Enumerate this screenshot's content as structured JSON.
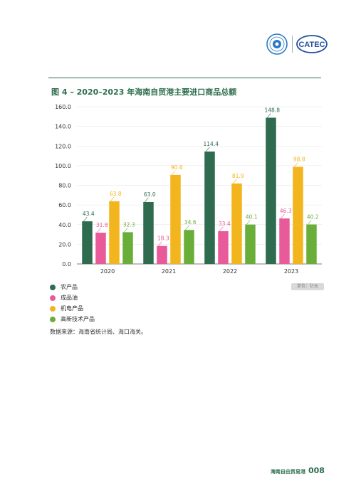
{
  "chart_data": {
    "type": "bar",
    "title": "图 4 – 2020–2023 年海南自贸港主要进口商品总额",
    "categories": [
      "2020",
      "2021",
      "2022",
      "2023"
    ],
    "ylim": [
      0,
      160
    ],
    "yticks": [
      "0.0",
      "20.0",
      "40.0",
      "60.0",
      "80.0",
      "100.0",
      "120.0",
      "140.0",
      "160.0"
    ],
    "grid": true,
    "legend_position": "bottom-left",
    "unit": "单位：亿元",
    "series": [
      {
        "name": "农产品",
        "color": "#2e6b4f",
        "values": [
          43.4,
          63.0,
          114.4,
          148.8
        ],
        "labels": [
          "43.4",
          "63.0",
          "114.4",
          "148.8"
        ]
      },
      {
        "name": "成品油",
        "color": "#e85a9a",
        "values": [
          31.8,
          18.3,
          33.4,
          46.3
        ],
        "labels": [
          "31.8",
          "18.3",
          "33.4",
          "46.3"
        ]
      },
      {
        "name": "机电产品",
        "color": "#f2b51d",
        "values": [
          63.8,
          90.6,
          81.9,
          98.8
        ],
        "labels": [
          "63.8",
          "90.6",
          "81.9",
          "98.8"
        ]
      },
      {
        "name": "高新技术产品",
        "color": "#6aae3a",
        "values": [
          32.3,
          34.6,
          40.1,
          40.2
        ],
        "labels": [
          "32.3",
          "34.6",
          "40.1",
          "40.2"
        ]
      }
    ]
  },
  "source_note": "数据来源：海南省统计局、海口海关。",
  "footer": {
    "title": "海南自由贸易港",
    "page": "008"
  },
  "logos": {
    "right_text": "CATEC"
  }
}
